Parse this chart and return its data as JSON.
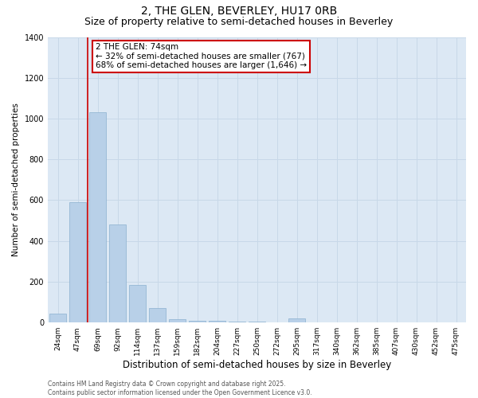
{
  "title": "2, THE GLEN, BEVERLEY, HU17 0RB",
  "subtitle": "Size of property relative to semi-detached houses in Beverley",
  "xlabel": "Distribution of semi-detached houses by size in Beverley",
  "ylabel": "Number of semi-detached properties",
  "categories": [
    "24sqm",
    "47sqm",
    "69sqm",
    "92sqm",
    "114sqm",
    "137sqm",
    "159sqm",
    "182sqm",
    "204sqm",
    "227sqm",
    "250sqm",
    "272sqm",
    "295sqm",
    "317sqm",
    "340sqm",
    "362sqm",
    "385sqm",
    "407sqm",
    "430sqm",
    "452sqm",
    "475sqm"
  ],
  "values": [
    45,
    590,
    1030,
    480,
    185,
    70,
    15,
    10,
    7,
    5,
    5,
    0,
    20,
    0,
    0,
    0,
    0,
    0,
    0,
    0,
    0
  ],
  "bar_color": "#b8d0e8",
  "bar_edge_color": "#8ab0d0",
  "highlight_line_color": "#cc0000",
  "highlight_bin": 2,
  "annotation_line1": "2 THE GLEN: 74sqm",
  "annotation_line2": "← 32% of semi-detached houses are smaller (767)",
  "annotation_line3": "68% of semi-detached houses are larger (1,646) →",
  "annotation_box_color": "#cc0000",
  "ylim": [
    0,
    1400
  ],
  "yticks": [
    0,
    200,
    400,
    600,
    800,
    1000,
    1200,
    1400
  ],
  "grid_color": "#c8d8e8",
  "bg_color": "#dce8f4",
  "footer_line1": "Contains HM Land Registry data © Crown copyright and database right 2025.",
  "footer_line2": "Contains public sector information licensed under the Open Government Licence v3.0.",
  "title_fontsize": 10,
  "subtitle_fontsize": 9,
  "xlabel_fontsize": 8.5,
  "ylabel_fontsize": 7.5,
  "tick_fontsize": 6.5,
  "annotation_fontsize": 7.5,
  "footer_fontsize": 5.5
}
